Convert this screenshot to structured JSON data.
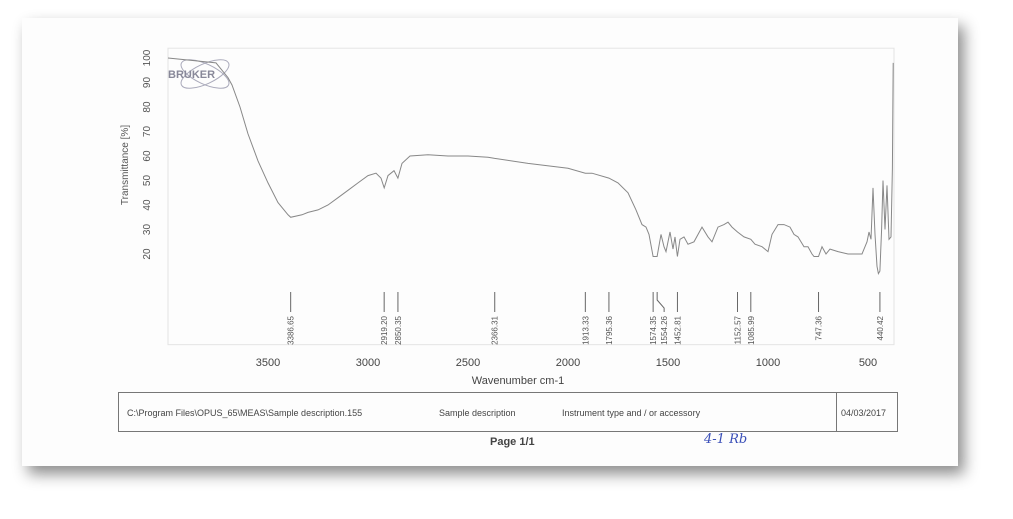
{
  "chart_data": {
    "type": "line",
    "xlabel": "Wavenumber cm-1",
    "ylabel": "Transmittance [%]",
    "xlim": [
      4000,
      370
    ],
    "ylim": [
      -17,
      104
    ],
    "x_reversed": true,
    "xticks": [
      3500,
      3000,
      2500,
      2000,
      1500,
      1000,
      500
    ],
    "yticks": [
      20,
      30,
      40,
      50,
      60,
      70,
      80,
      90,
      100
    ],
    "grid": false,
    "line_color": "#888888",
    "series": [
      {
        "points": [
          [
            4000,
            100
          ],
          [
            3760,
            98
          ],
          [
            3700,
            92
          ],
          [
            3680,
            89
          ],
          [
            3640,
            80
          ],
          [
            3600,
            69
          ],
          [
            3550,
            58
          ],
          [
            3500,
            49
          ],
          [
            3450,
            41
          ],
          [
            3400,
            36
          ],
          [
            3386.65,
            35
          ],
          [
            3330,
            36
          ],
          [
            3300,
            37
          ],
          [
            3250,
            38
          ],
          [
            3200,
            40
          ],
          [
            3150,
            43
          ],
          [
            3100,
            46
          ],
          [
            3050,
            49
          ],
          [
            3000,
            52
          ],
          [
            2960,
            53
          ],
          [
            2935,
            51
          ],
          [
            2919.2,
            47
          ],
          [
            2900,
            52
          ],
          [
            2870,
            54
          ],
          [
            2850.35,
            51
          ],
          [
            2830,
            57
          ],
          [
            2790,
            60
          ],
          [
            2700,
            60.5
          ],
          [
            2600,
            60
          ],
          [
            2500,
            60
          ],
          [
            2400,
            59.5
          ],
          [
            2366.31,
            59
          ],
          [
            2200,
            57
          ],
          [
            2000,
            55
          ],
          [
            1913.33,
            53
          ],
          [
            1880,
            53
          ],
          [
            1795.36,
            51
          ],
          [
            1750,
            49
          ],
          [
            1700,
            45
          ],
          [
            1660,
            38
          ],
          [
            1630,
            32
          ],
          [
            1610,
            31
          ],
          [
            1595,
            28
          ],
          [
            1574.35,
            19
          ],
          [
            1554.26,
            19
          ],
          [
            1535,
            28
          ],
          [
            1520,
            23
          ],
          [
            1510,
            21
          ],
          [
            1490,
            29
          ],
          [
            1475,
            22
          ],
          [
            1465,
            27
          ],
          [
            1452.81,
            19
          ],
          [
            1440,
            26
          ],
          [
            1420,
            27
          ],
          [
            1400,
            24
          ],
          [
            1370,
            25
          ],
          [
            1330,
            31
          ],
          [
            1300,
            27
          ],
          [
            1280,
            25
          ],
          [
            1250,
            31
          ],
          [
            1220,
            32
          ],
          [
            1200,
            33
          ],
          [
            1180,
            31
          ],
          [
            1152.57,
            29
          ],
          [
            1120,
            27
          ],
          [
            1085.99,
            26
          ],
          [
            1065,
            24
          ],
          [
            1030,
            23
          ],
          [
            1000,
            21
          ],
          [
            980,
            28
          ],
          [
            950,
            32
          ],
          [
            920,
            32
          ],
          [
            890,
            31
          ],
          [
            870,
            28
          ],
          [
            850,
            27
          ],
          [
            820,
            23
          ],
          [
            800,
            23
          ],
          [
            780,
            20
          ],
          [
            770,
            19
          ],
          [
            747.36,
            19
          ],
          [
            730,
            23
          ],
          [
            710,
            20
          ],
          [
            690,
            22
          ],
          [
            650,
            21
          ],
          [
            600,
            20
          ],
          [
            530,
            20
          ],
          [
            515,
            23
          ],
          [
            505,
            25
          ],
          [
            495,
            29
          ],
          [
            485,
            26
          ],
          [
            475,
            47
          ],
          [
            465,
            28
          ],
          [
            455,
            15
          ],
          [
            448,
            12
          ],
          [
            440.42,
            13
          ],
          [
            432,
            30
          ],
          [
            425,
            50
          ],
          [
            415,
            30
          ],
          [
            405,
            48
          ],
          [
            395,
            26
          ],
          [
            385,
            27
          ],
          [
            378,
            55
          ],
          [
            374,
            98
          ]
        ]
      }
    ],
    "peak_labels": [
      "3386.65",
      "2919.20",
      "2850.35",
      "2366.31",
      "1913.33",
      "1795.36",
      "1574.35",
      "1554.26",
      "1452.81",
      "1152.57",
      "1085.99",
      "747.36",
      "440.42"
    ]
  },
  "logo": "BRUKER",
  "footer": {
    "path": "C:\\Program Files\\OPUS_65\\MEAS\\Sample description.155",
    "sample": "Sample description",
    "instrument": "Instrument type and / or accessory",
    "date": "04/03/2017"
  },
  "page": "Page 1/1",
  "handwriting": "4-1 Rb"
}
